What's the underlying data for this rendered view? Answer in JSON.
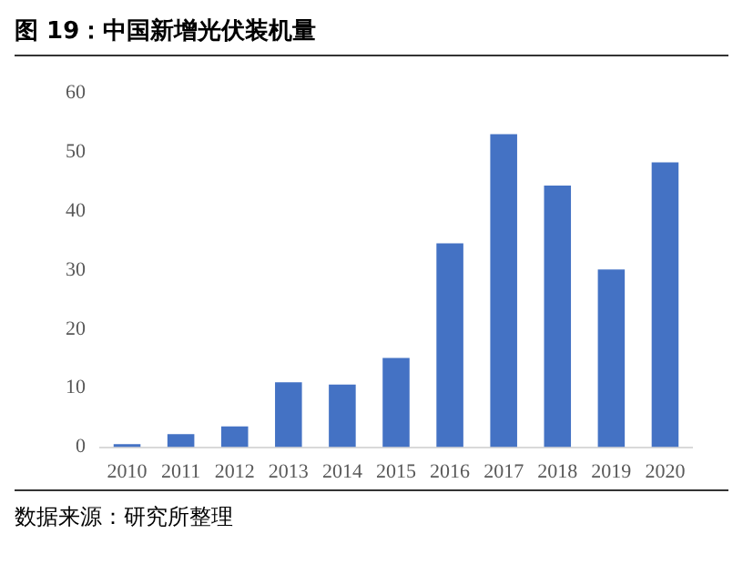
{
  "chart_data": {
    "type": "bar",
    "title": "图 19：中国新增光伏装机量",
    "categories": [
      "2010",
      "2011",
      "2012",
      "2013",
      "2014",
      "2015",
      "2016",
      "2017",
      "2018",
      "2019",
      "2020"
    ],
    "values": [
      0.5,
      2.2,
      3.5,
      11,
      10.6,
      15.1,
      34.5,
      53,
      44.3,
      30.1,
      48.2
    ],
    "color": "#4472c4",
    "ylim": [
      0,
      60
    ],
    "yticks": [
      0,
      10,
      20,
      30,
      40,
      50,
      60
    ],
    "grid": false,
    "annotations": [
      "数据来源：研究所整理"
    ]
  }
}
